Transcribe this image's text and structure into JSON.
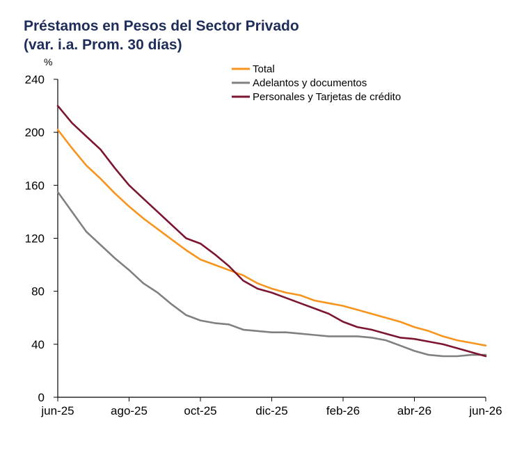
{
  "chart_data": {
    "type": "line",
    "title": "Préstamos en Pesos del Sector Privado",
    "subtitle": "(var. i.a. Prom. 30 días)",
    "ylabel": "%",
    "xlabel": "",
    "ylim": [
      0,
      240
    ],
    "yticks": [
      "0",
      "40",
      "80",
      "120",
      "160",
      "200",
      "240"
    ],
    "xticks": [
      "jun-25",
      "ago-25",
      "oct-25",
      "dic-25",
      "feb-26",
      "abr-26",
      "jun-26"
    ],
    "grid": false,
    "legend_position": "top-right",
    "x": [
      0,
      0.2,
      0.4,
      0.6,
      0.8,
      1.0,
      1.2,
      1.4,
      1.6,
      1.8,
      2.0,
      2.2,
      2.4,
      2.6,
      2.8,
      3.0,
      3.2,
      3.4,
      3.6,
      3.8,
      4.0,
      4.2,
      4.4,
      4.6,
      4.8,
      5.0,
      5.2,
      5.4,
      5.6,
      5.8,
      6.0
    ],
    "series": [
      {
        "name": "Total",
        "color": "#f7941d",
        "values": [
          202,
          188,
          175,
          165,
          154,
          144,
          135,
          127,
          119,
          111,
          104,
          100,
          96,
          92,
          86,
          82,
          79,
          77,
          73,
          71,
          69,
          66,
          63,
          60,
          57,
          53,
          50,
          46,
          43,
          41,
          39
        ]
      },
      {
        "name": "Adelantos y documentos",
        "color": "#808080",
        "values": [
          155,
          140,
          125,
          115,
          105,
          96,
          86,
          79,
          70,
          62,
          58,
          56,
          55,
          51,
          50,
          49,
          49,
          48,
          47,
          46,
          46,
          46,
          45,
          43,
          39,
          35,
          32,
          31,
          31,
          32,
          32
        ]
      },
      {
        "name": "Personales y Tarjetas de crédito",
        "color": "#7b1530",
        "values": [
          220,
          207,
          197,
          187,
          173,
          160,
          150,
          140,
          130,
          120,
          116,
          108,
          99,
          88,
          82,
          79,
          75,
          71,
          67,
          63,
          57,
          53,
          51,
          48,
          45,
          44,
          42,
          40,
          37,
          34,
          31
        ]
      }
    ]
  }
}
